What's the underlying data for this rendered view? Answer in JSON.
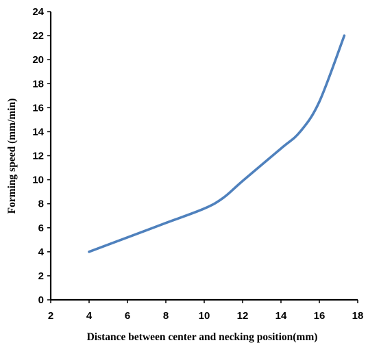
{
  "chart_data": {
    "type": "line",
    "title": "",
    "xlabel": "Distance between center and necking position(mm)",
    "ylabel": "Forming speed (mm/min)",
    "xlim": [
      2,
      18
    ],
    "ylim": [
      0,
      24
    ],
    "xticks": [
      "2",
      "4",
      "6",
      "8",
      "10",
      "12",
      "14",
      "16",
      "18"
    ],
    "yticks": [
      "0",
      "2",
      "4",
      "6",
      "8",
      "10",
      "12",
      "14",
      "16",
      "18",
      "20",
      "22",
      "24"
    ],
    "grid": false,
    "legend": "none",
    "series": [
      {
        "color": "#4f81bd",
        "x": [
          4,
          6,
          8,
          10,
          11,
          12,
          14,
          15,
          16,
          17.3
        ],
        "y": [
          4,
          5.2,
          6.4,
          7.6,
          8.5,
          9.9,
          12.6,
          14.0,
          16.5,
          22
        ]
      }
    ]
  }
}
